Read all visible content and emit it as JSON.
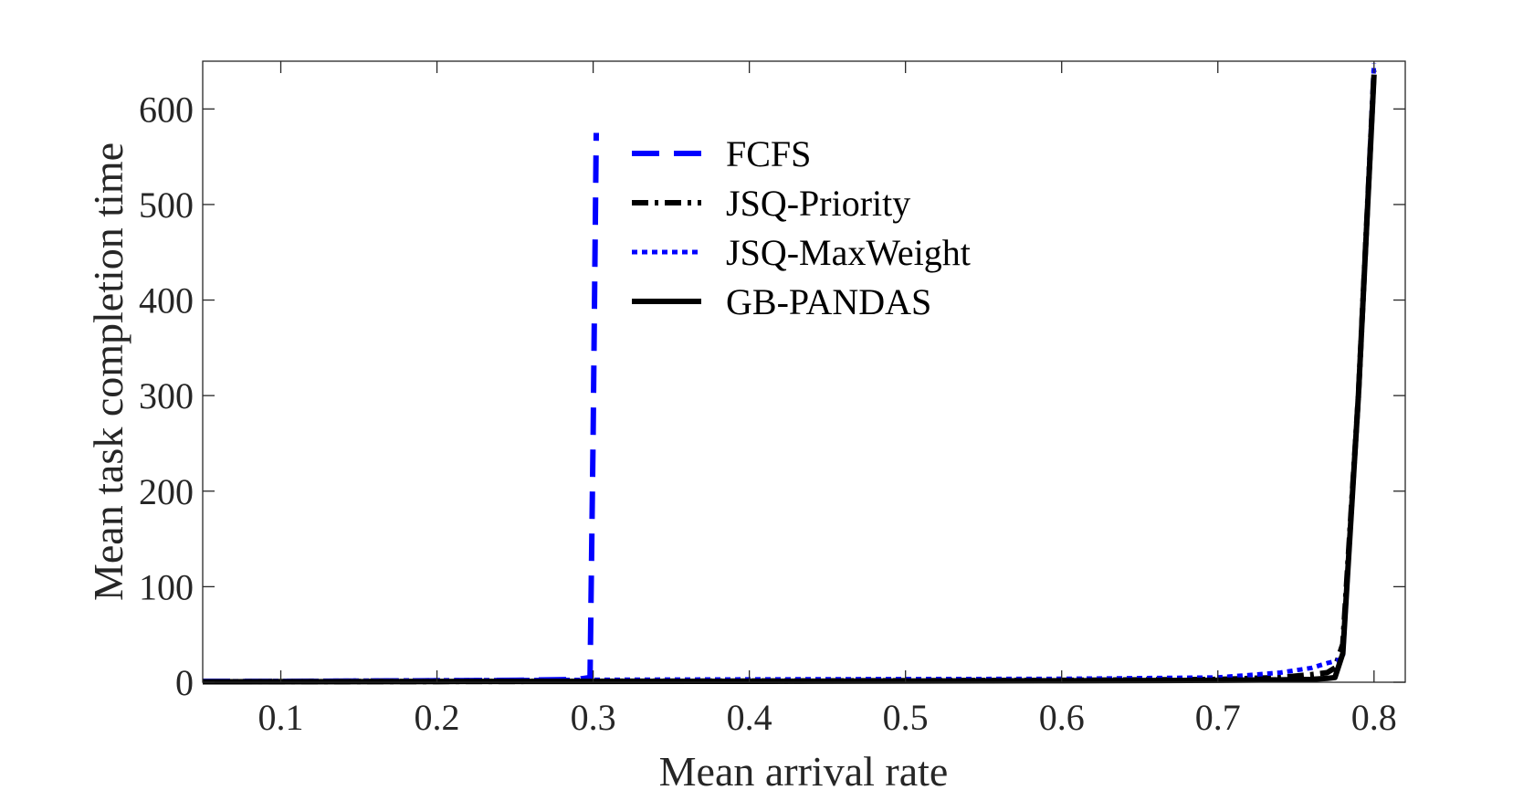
{
  "chart_data": {
    "type": "line",
    "title": "",
    "xlabel": "Mean arrival rate",
    "ylabel": "Mean task completion time",
    "xlim": [
      0.05,
      0.82
    ],
    "ylim": [
      0,
      650
    ],
    "xticks": [
      0.1,
      0.2,
      0.3,
      0.4,
      0.5,
      0.6,
      0.7,
      0.8
    ],
    "yticks": [
      0,
      100,
      200,
      300,
      400,
      500,
      600
    ],
    "xtick_labels": [
      "0.1",
      "0.2",
      "0.3",
      "0.4",
      "0.5",
      "0.6",
      "0.7",
      "0.8"
    ],
    "ytick_labels": [
      "0",
      "100",
      "200",
      "300",
      "400",
      "500",
      "600"
    ],
    "grid": false,
    "legend_position": "top-center",
    "series": [
      {
        "name": "FCFS",
        "color": "#0000ff",
        "style": "dashed",
        "x": [
          0.05,
          0.1,
          0.2,
          0.25,
          0.29,
          0.298,
          0.3,
          0.302
        ],
        "y": [
          1,
          1,
          1.5,
          2,
          3,
          5,
          260,
          575
        ]
      },
      {
        "name": "JSQ-Priority",
        "color": "#000000",
        "style": "dashdot",
        "x": [
          0.05,
          0.2,
          0.4,
          0.6,
          0.7,
          0.74,
          0.76,
          0.77,
          0.775,
          0.78,
          0.79,
          0.8
        ],
        "y": [
          0.5,
          0.8,
          1.2,
          2,
          3,
          5,
          8,
          10,
          15,
          40,
          300,
          640
        ]
      },
      {
        "name": "JSQ-MaxWeight",
        "color": "#0000ff",
        "style": "dotted",
        "x": [
          0.05,
          0.2,
          0.4,
          0.6,
          0.7,
          0.74,
          0.76,
          0.77,
          0.775,
          0.78,
          0.79,
          0.8
        ],
        "y": [
          1,
          2,
          3,
          3.5,
          5,
          10,
          15,
          20,
          22,
          25,
          300,
          648
        ]
      },
      {
        "name": "GB-PANDAS",
        "color": "#000000",
        "style": "solid",
        "x": [
          0.05,
          0.2,
          0.4,
          0.6,
          0.7,
          0.74,
          0.76,
          0.77,
          0.775,
          0.78,
          0.79,
          0.8
        ],
        "y": [
          0.5,
          0.8,
          1,
          1.5,
          2,
          2.5,
          3,
          4,
          5,
          30,
          300,
          636
        ]
      }
    ]
  }
}
